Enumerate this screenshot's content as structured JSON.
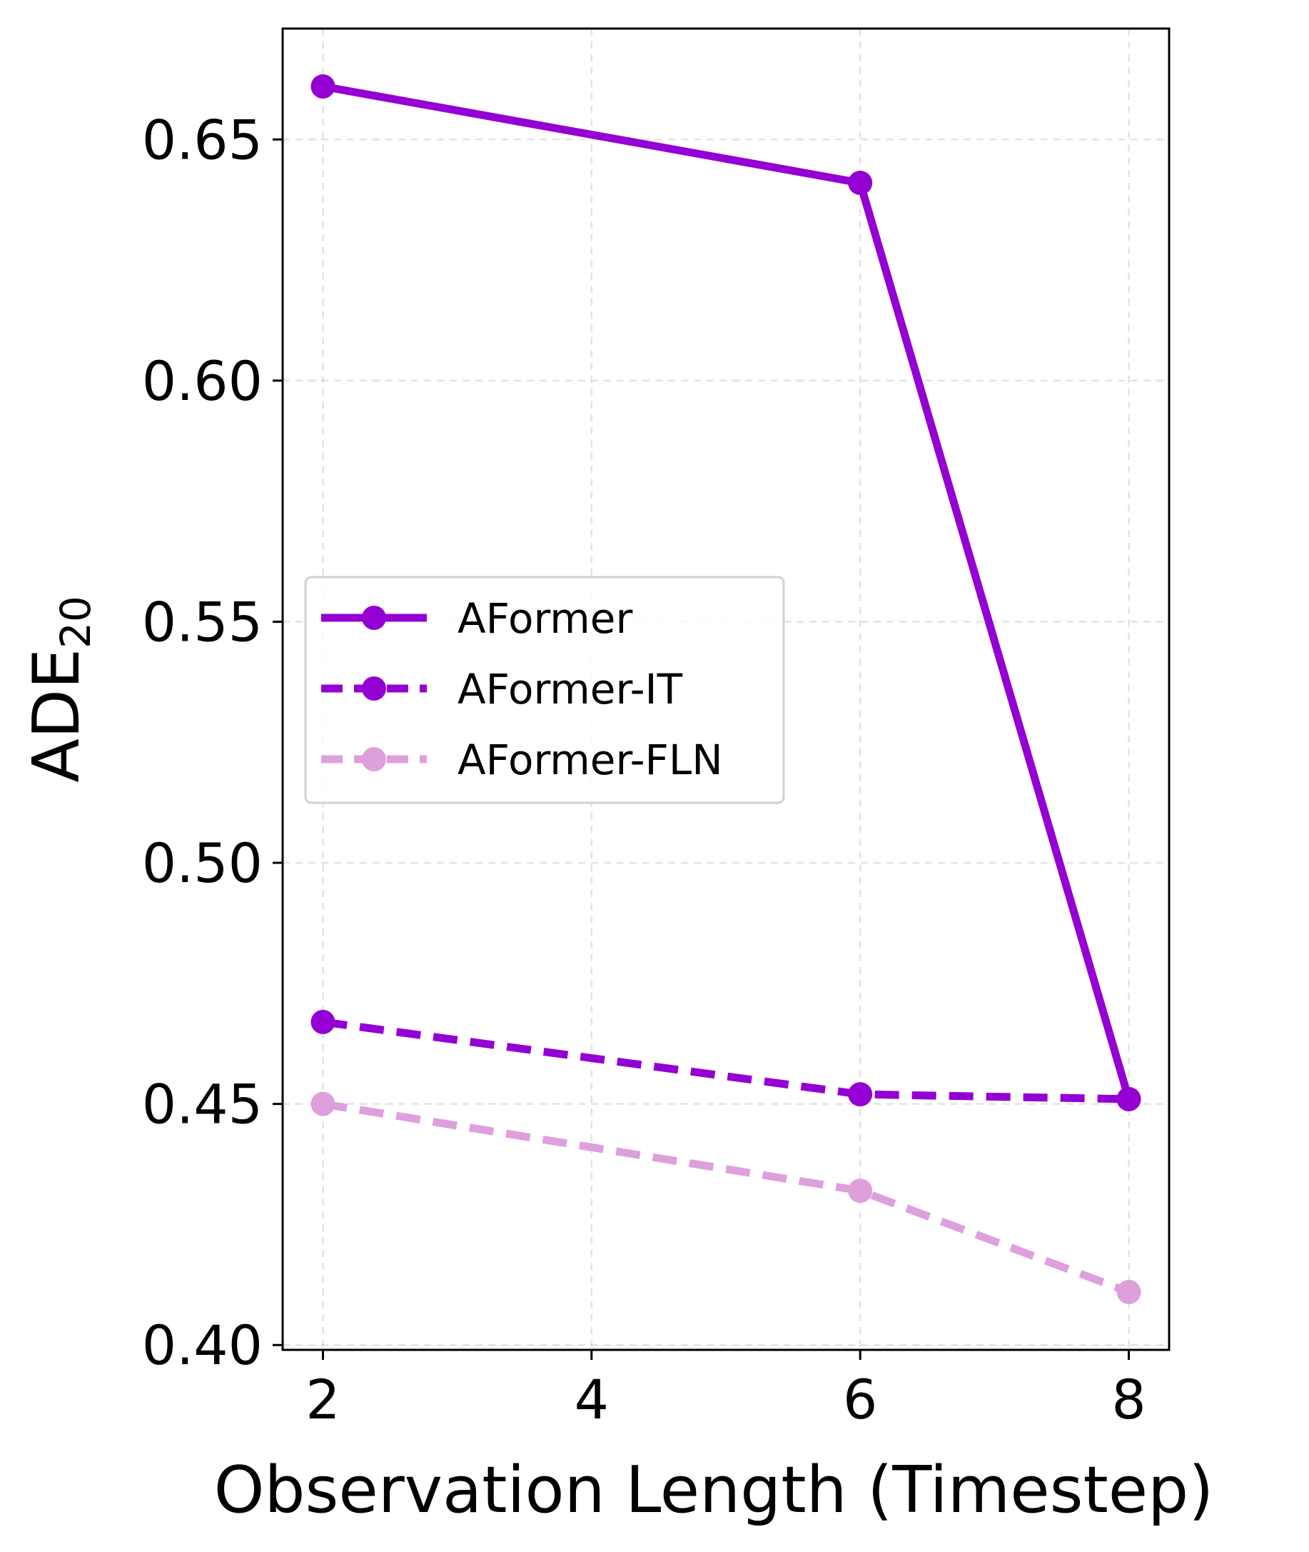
{
  "chart_data": {
    "type": "line",
    "xlabel": "Observation Length (Timestep)",
    "ylabel_main": "ADE",
    "ylabel_sub": "20",
    "xlim": [
      1.7,
      8.3
    ],
    "ylim": [
      0.399,
      0.673
    ],
    "xticks": [
      2,
      4,
      6,
      8
    ],
    "xtick_labels": [
      "2",
      "4",
      "6",
      "8"
    ],
    "yticks": [
      0.4,
      0.45,
      0.5,
      0.55,
      0.6,
      0.65
    ],
    "ytick_labels": [
      "0.40",
      "0.45",
      "0.50",
      "0.55",
      "0.60",
      "0.65"
    ],
    "grid": true,
    "legend_position": "center-left",
    "series": [
      {
        "name": "AFormer",
        "x": [
          2,
          6,
          8
        ],
        "values": [
          0.661,
          0.641,
          0.451
        ],
        "color": "#9400d3",
        "style": "solid"
      },
      {
        "name": "AFormer-IT",
        "x": [
          2,
          6,
          8
        ],
        "values": [
          0.467,
          0.452,
          0.451
        ],
        "color": "#9400d3",
        "style": "dashed"
      },
      {
        "name": "AFormer-FLN",
        "x": [
          2,
          6,
          8
        ],
        "values": [
          0.45,
          0.432,
          0.411
        ],
        "color": "#dda0dd",
        "style": "dashed"
      }
    ]
  }
}
